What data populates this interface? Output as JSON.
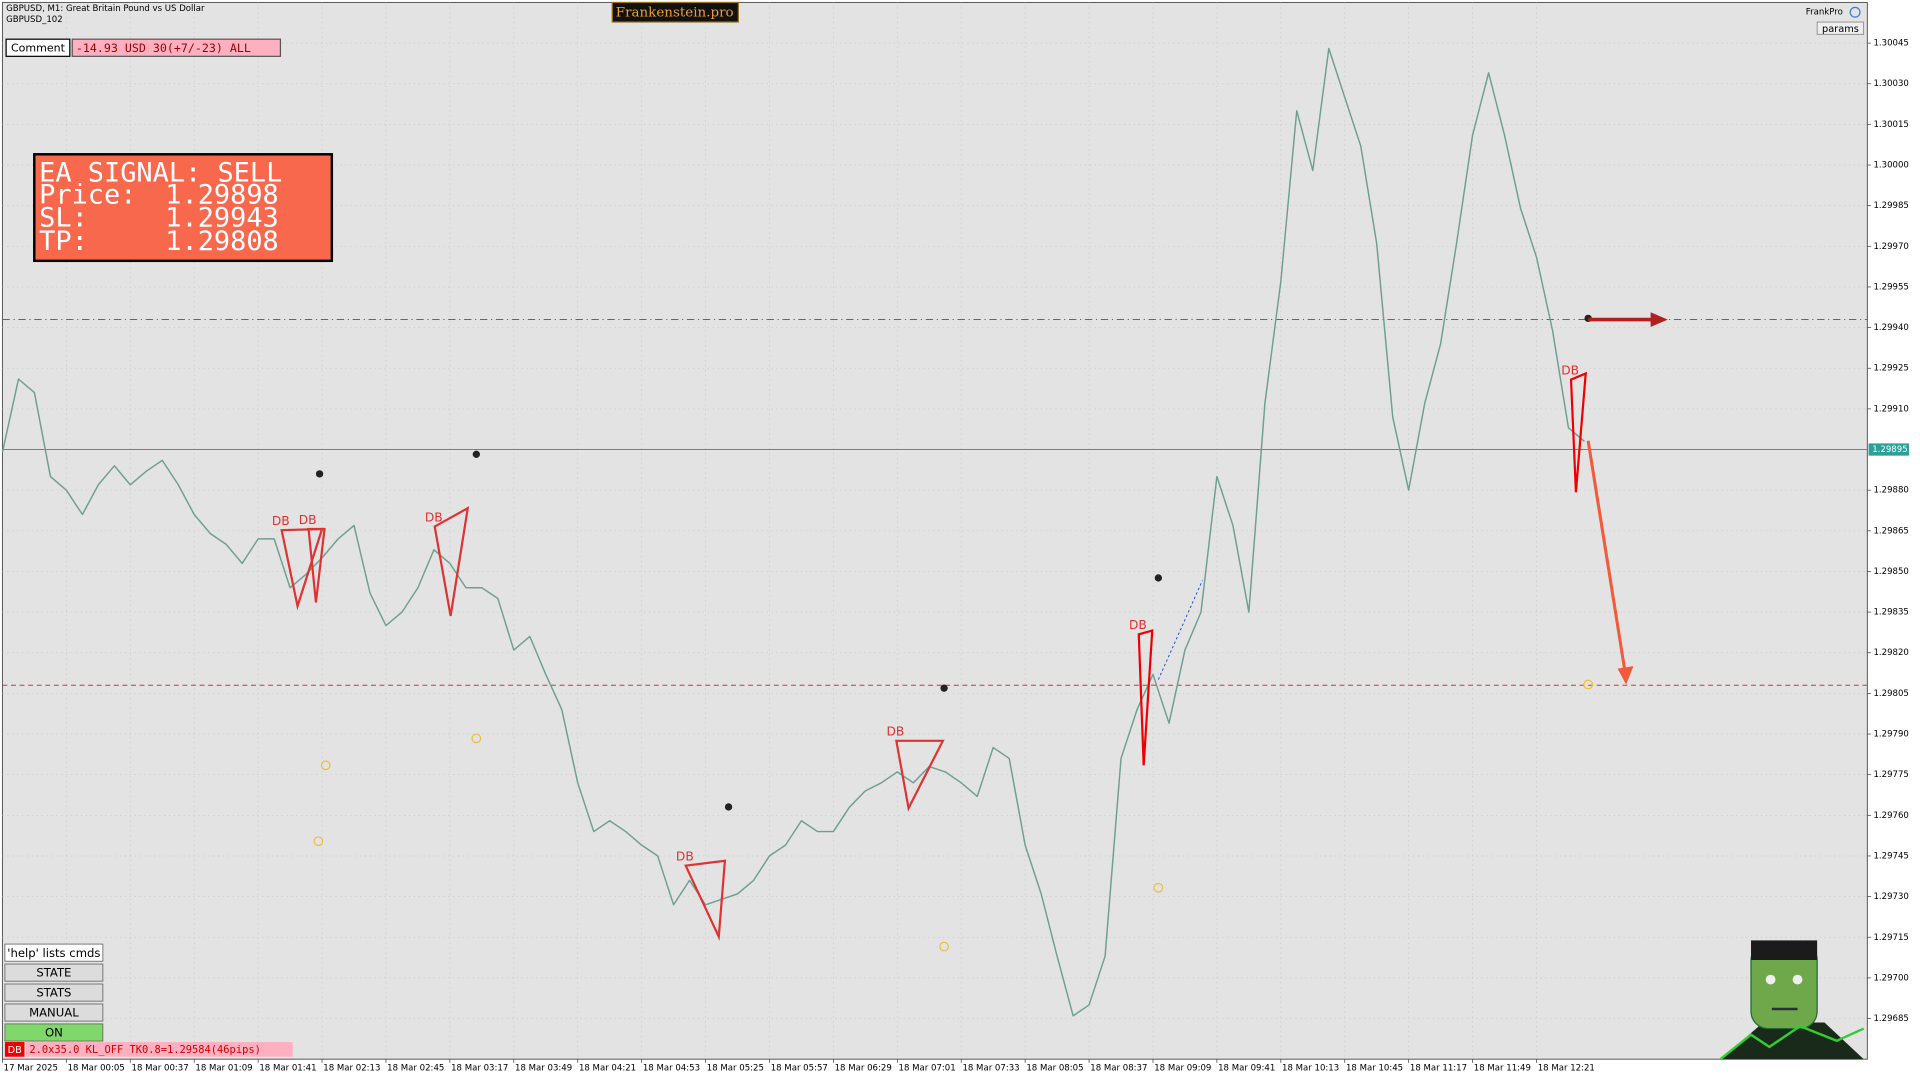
{
  "header": {
    "symbol": "GBPUSD, M1:  Great Britain Pound vs US Dollar",
    "account": "GBPUSD_102",
    "brand": "Frankenstein.pro",
    "user": "FrankPro",
    "params": "params"
  },
  "comment": {
    "label": "Comment",
    "value": "-14.93 USD 30(+7/-23) ALL"
  },
  "signal": {
    "title": "EA SIGNAL: SELL",
    "price_label": "Price:",
    "price": 1.29898,
    "sl_label": "SL:",
    "sl": 1.29943,
    "tp_label": "TP:",
    "tp": 1.29808
  },
  "buttons": [
    "'help' lists cmds",
    "STATE",
    "STATS",
    "MANUAL",
    "ON"
  ],
  "status": {
    "tag": "DB",
    "text": "2.0x35.0 KL_OFF TK0.8=1.29584(46pips)"
  },
  "chart_data": {
    "type": "line",
    "color": "#6f9f92",
    "grid": true,
    "annotation": "DB",
    "last_price": 1.29895,
    "categories": [
      "17 Mar 2025",
      null,
      null,
      null,
      "18 Mar 00:05",
      null,
      null,
      null,
      "18 Mar 00:37",
      null,
      null,
      null,
      "18 Mar 01:09",
      null,
      null,
      null,
      "18 Mar 01:41",
      null,
      null,
      null,
      "18 Mar 02:13",
      null,
      null,
      null,
      "18 Mar 02:45",
      null,
      null,
      null,
      "18 Mar 03:17",
      null,
      null,
      null,
      "18 Mar 03:49",
      null,
      null,
      null,
      "18 Mar 04:21",
      null,
      null,
      null,
      "18 Mar 04:53",
      null,
      null,
      null,
      "18 Mar 05:25",
      null,
      null,
      null,
      "18 Mar 05:57",
      null,
      null,
      null,
      "18 Mar 06:29",
      null,
      null,
      null,
      "18 Mar 07:01",
      null,
      null,
      null,
      "18 Mar 07:33",
      null,
      null,
      null,
      "18 Mar 08:05",
      null,
      null,
      null,
      "18 Mar 08:37",
      null,
      null,
      null,
      "18 Mar 09:09",
      null,
      null,
      null,
      "18 Mar 09:41",
      null,
      null,
      null,
      "18 Mar 10:13",
      null,
      null,
      null,
      "18 Mar 10:45",
      null,
      null,
      null,
      "18 Mar 11:17",
      null,
      null,
      null,
      "18 Mar 11:49",
      null,
      null,
      null,
      "18 Mar 12:21",
      null,
      null,
      null
    ],
    "values": [
      1.29894,
      1.29921,
      1.29916,
      1.29885,
      1.2988,
      1.29871,
      1.29882,
      1.29889,
      1.29882,
      1.29887,
      1.29891,
      1.29882,
      1.29871,
      1.29864,
      1.2986,
      1.29853,
      1.29862,
      1.29862,
      1.29844,
      1.29849,
      1.29855,
      1.29862,
      1.29867,
      1.29842,
      1.2983,
      1.29835,
      1.29844,
      1.29858,
      1.29853,
      1.29844,
      1.29844,
      1.2984,
      1.29821,
      1.29826,
      1.29812,
      1.29799,
      1.29772,
      1.29754,
      1.29758,
      1.29754,
      1.29749,
      1.29745,
      1.29727,
      1.29736,
      1.29727,
      1.29729,
      1.29731,
      1.29736,
      1.29745,
      1.29749,
      1.29758,
      1.29754,
      1.29754,
      1.29763,
      1.29769,
      1.29772,
      1.29776,
      1.29772,
      1.29778,
      1.29776,
      1.29772,
      1.29767,
      1.29785,
      1.29781,
      1.29749,
      1.29731,
      1.29708,
      1.29686,
      1.2969,
      1.29708,
      1.29781,
      1.29799,
      1.29812,
      1.29794,
      1.29821,
      1.29835,
      1.29885,
      1.29867,
      1.29835,
      1.29912,
      1.29957,
      1.3002,
      1.29998,
      1.30043,
      1.30025,
      1.30007,
      1.29971,
      1.29907,
      1.2988,
      1.29912,
      1.29934,
      1.29971,
      1.30011,
      1.30034,
      1.30011,
      1.29984,
      1.29966,
      1.29939,
      1.29903,
      1.29898
    ],
    "ylim": [
      1.2967,
      1.3006
    ],
    "yticks": [
      1.30045,
      {
        "value": 1.3003,
        "label": "1.30030"
      },
      1.30015,
      {
        "value": 1.3,
        "label": "1.30000"
      },
      1.29985,
      {
        "value": 1.2997,
        "label": "1.29970"
      },
      1.29955,
      {
        "value": 1.2994,
        "label": "1.29940"
      },
      1.29925,
      {
        "value": 1.2991,
        "label": "1.29910"
      },
      {
        "value": 1.2988,
        "label": "1.29880"
      },
      1.29865,
      {
        "value": 1.2985,
        "label": "1.29850"
      },
      1.29835,
      {
        "value": 1.2982,
        "label": "1.29820"
      },
      1.29805,
      {
        "value": 1.2979,
        "label": "1.29790"
      },
      1.29775,
      {
        "value": 1.2976,
        "label": "1.29760"
      },
      1.29745,
      {
        "value": 1.2973,
        "label": "1.29730"
      },
      1.29715,
      {
        "value": 1.297,
        "label": "1.29700"
      },
      1.29685
    ]
  }
}
